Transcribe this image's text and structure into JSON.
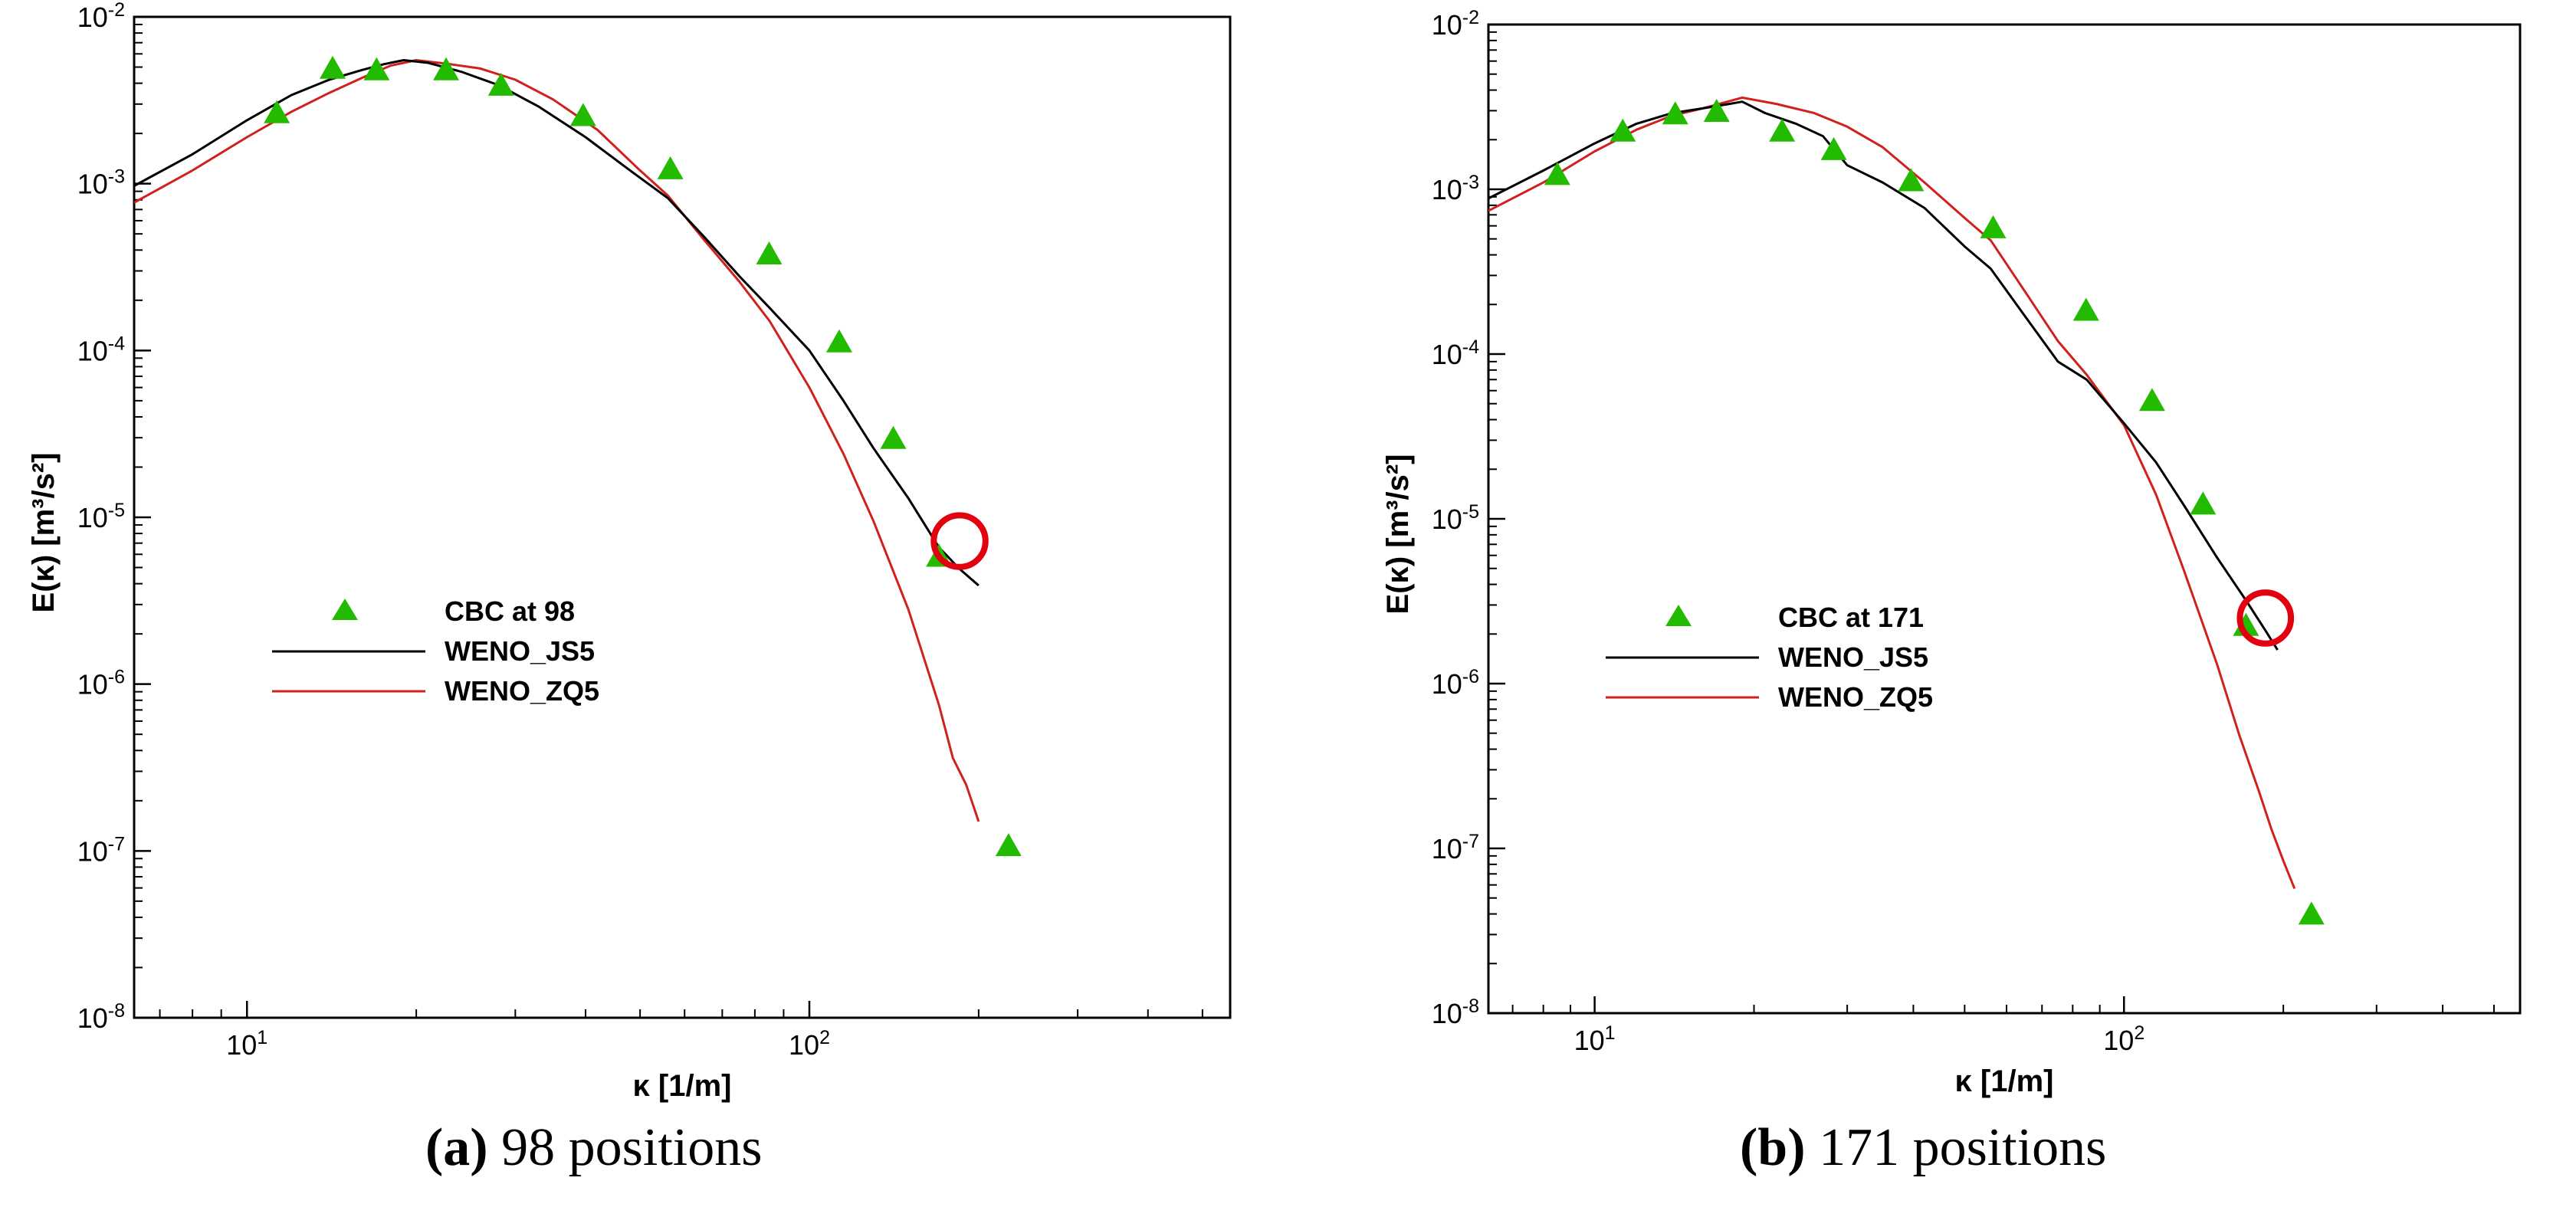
{
  "colors": {
    "cbc": "#22bb00",
    "js5": "#000000",
    "zq5": "#d0211c",
    "circle": "#e3000f"
  },
  "chart_data": [
    {
      "type": "line",
      "xscale": "log",
      "yscale": "log",
      "xlim": [
        6.3,
        560
      ],
      "ylim": [
        1e-08,
        0.01
      ],
      "xlabel": "κ [1/m]",
      "ylabel": "E(κ) [m³/s²]",
      "xticks": [
        {
          "base": "10",
          "exp": "1",
          "value": 10
        },
        {
          "base": "10",
          "exp": "2",
          "value": 100
        }
      ],
      "yticks": [
        {
          "base": "10",
          "exp": "-2",
          "value": 0.01
        },
        {
          "base": "10",
          "exp": "-3",
          "value": 0.001
        },
        {
          "base": "10",
          "exp": "-4",
          "value": 0.0001
        },
        {
          "base": "10",
          "exp": "-5",
          "value": 1e-05
        },
        {
          "base": "10",
          "exp": "-6",
          "value": 1e-06
        },
        {
          "base": "10",
          "exp": "-7",
          "value": 1e-07
        },
        {
          "base": "10",
          "exp": "-8",
          "value": 1e-08
        }
      ],
      "legend": {
        "placement": "center-left",
        "entries": [
          "CBC at 98",
          "WENO_JS5",
          "WENO_ZQ5"
        ]
      },
      "caption": {
        "label": "(a)",
        "text": " 98 positions"
      },
      "highlight_circle": {
        "center": [
          185,
          7.2e-06
        ],
        "radius_decades": 0.155
      },
      "series": [
        {
          "name": "CBC at 98",
          "kind": "marker",
          "x": [
            11.3,
            14.2,
            17.0,
            22.6,
            28.3,
            39.6,
            56.6,
            84.8,
            113,
            141,
            170,
            226
          ],
          "y": [
            0.0026,
            0.0048,
            0.0047,
            0.0047,
            0.0038,
            0.0025,
            0.0012,
            0.00037,
            0.00011,
            2.9e-05,
            5.7e-06,
            1.05e-07
          ]
        },
        {
          "name": "WENO_JS5",
          "kind": "line",
          "x": [
            6.3,
            8,
            10,
            12,
            14,
            16,
            17.5,
            19,
            21,
            24,
            28,
            33,
            40,
            48,
            56,
            65,
            75,
            85,
            100,
            115,
            130,
            150,
            170,
            185,
            200
          ],
          "y": [
            0.00097,
            0.0015,
            0.0024,
            0.0034,
            0.0042,
            0.0048,
            0.0052,
            0.0055,
            0.0053,
            0.0047,
            0.0039,
            0.0029,
            0.0019,
            0.0012,
            0.00082,
            0.00048,
            0.00028,
            0.00018,
            0.0001,
            5e-05,
            2.6e-05,
            1.3e-05,
            6.6e-06,
            4.9e-06,
            3.9e-06
          ]
        },
        {
          "name": "WENO_ZQ5",
          "kind": "line",
          "x": [
            6.3,
            8,
            10,
            12,
            14,
            16,
            18,
            20,
            23,
            26,
            30,
            35,
            42,
            50,
            56,
            65,
            75,
            85,
            100,
            115,
            130,
            150,
            170,
            180,
            190,
            200
          ],
          "y": [
            0.00077,
            0.0012,
            0.0019,
            0.0027,
            0.0035,
            0.0043,
            0.0051,
            0.0055,
            0.0052,
            0.0049,
            0.0042,
            0.0032,
            0.0021,
            0.0012,
            0.00085,
            0.00046,
            0.00026,
            0.00015,
            6e-05,
            2.4e-05,
            9.5e-06,
            2.8e-06,
            7.5e-07,
            3.6e-07,
            2.5e-07,
            1.5e-07
          ]
        }
      ]
    },
    {
      "type": "line",
      "xscale": "log",
      "yscale": "log",
      "xlim": [
        6.3,
        560
      ],
      "ylim": [
        1e-08,
        0.01
      ],
      "xlabel": "κ [1/m]",
      "ylabel": "E(κ) [m³/s²]",
      "xticks": [
        {
          "base": "10",
          "exp": "1",
          "value": 10
        },
        {
          "base": "10",
          "exp": "2",
          "value": 100
        }
      ],
      "yticks": [
        {
          "base": "10",
          "exp": "-2",
          "value": 0.01
        },
        {
          "base": "10",
          "exp": "-3",
          "value": 0.001
        },
        {
          "base": "10",
          "exp": "-4",
          "value": 0.0001
        },
        {
          "base": "10",
          "exp": "-5",
          "value": 1e-05
        },
        {
          "base": "10",
          "exp": "-6",
          "value": 1e-06
        },
        {
          "base": "10",
          "exp": "-7",
          "value": 1e-07
        },
        {
          "base": "10",
          "exp": "-8",
          "value": 1e-08
        }
      ],
      "legend": {
        "placement": "center-left",
        "entries": [
          "CBC at 171",
          "WENO_JS5",
          "WENO_ZQ5"
        ]
      },
      "caption": {
        "label": "(b)",
        "text": " 171 positions"
      },
      "highlight_circle": {
        "center": [
          185,
          2.5e-06
        ],
        "radius_decades": 0.155
      },
      "series": [
        {
          "name": "CBC at 171",
          "kind": "marker",
          "x": [
            8.5,
            11.3,
            14.2,
            17.0,
            22.6,
            28.3,
            39.6,
            56.6,
            84.8,
            113,
            141,
            170,
            226
          ],
          "y": [
            0.0012,
            0.0022,
            0.0028,
            0.0029,
            0.0022,
            0.0017,
            0.0011,
            0.00057,
            0.00018,
            5.1e-05,
            1.2e-05,
            2.2e-06,
            3.9e-08
          ]
        },
        {
          "name": "WENO_JS5",
          "kind": "line",
          "x": [
            6.3,
            8,
            10,
            12,
            14,
            16,
            18,
            19,
            21,
            24,
            27,
            30,
            35,
            42,
            50,
            56,
            65,
            75,
            85,
            100,
            115,
            130,
            150,
            170,
            185,
            195
          ],
          "y": [
            0.00088,
            0.0013,
            0.0019,
            0.0025,
            0.0029,
            0.0031,
            0.0033,
            0.0034,
            0.0029,
            0.0025,
            0.0021,
            0.0014,
            0.0011,
            0.00077,
            0.00045,
            0.00033,
            0.00017,
            9e-05,
            7e-05,
            3.8e-05,
            2.2e-05,
            1.2e-05,
            5.8e-06,
            3.2e-06,
            2.1e-06,
            1.6e-06
          ]
        },
        {
          "name": "WENO_ZQ5",
          "kind": "line",
          "x": [
            6.3,
            8,
            10,
            12,
            14,
            16,
            19,
            22,
            26,
            30,
            35,
            42,
            50,
            56,
            65,
            75,
            85,
            100,
            115,
            130,
            150,
            165,
            180,
            190,
            200,
            210
          ],
          "y": [
            0.00074,
            0.0011,
            0.0017,
            0.0023,
            0.0028,
            0.0031,
            0.0036,
            0.0033,
            0.0029,
            0.0024,
            0.0018,
            0.0011,
            0.00067,
            0.00049,
            0.00024,
            0.00012,
            7.5e-05,
            3.7e-05,
            1.4e-05,
            4.8e-06,
            1.3e-06,
            4.9e-07,
            2.2e-07,
            1.3e-07,
            8.4e-08,
            5.7e-08
          ]
        }
      ]
    }
  ]
}
